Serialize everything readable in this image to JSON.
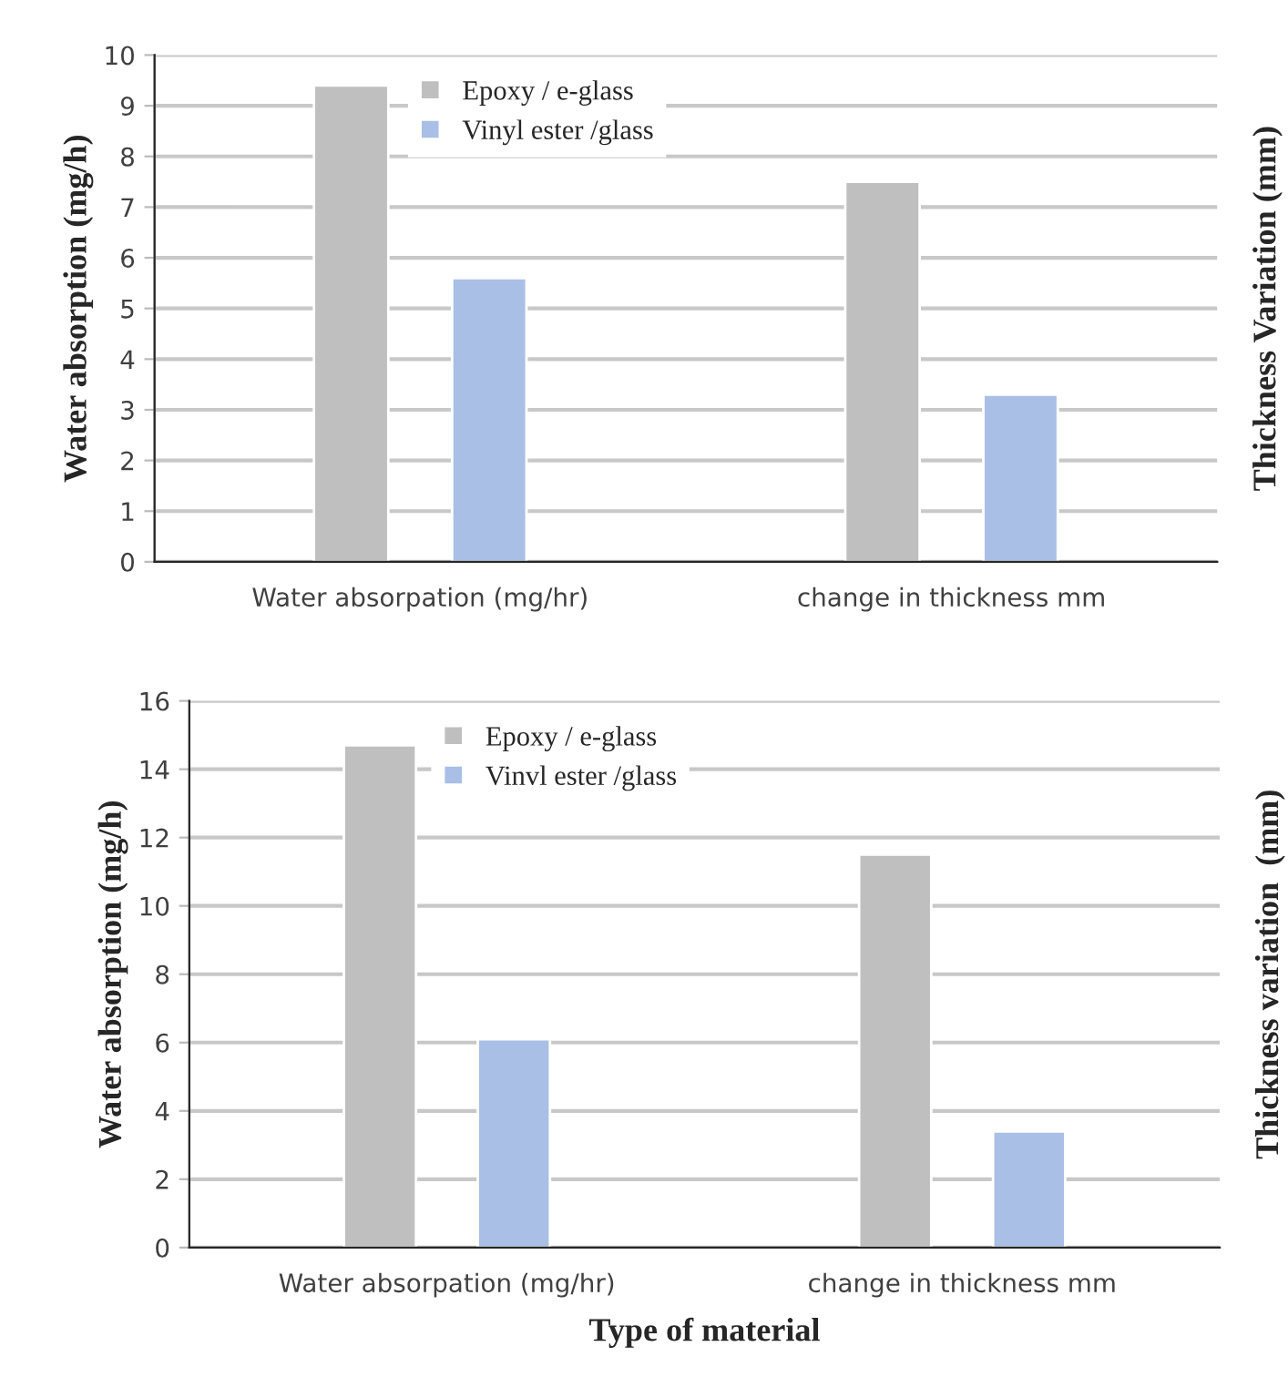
{
  "chart_data": [
    {
      "type": "bar",
      "categories": [
        "Water absorpation (mg/hr)",
        "change in thickness mm"
      ],
      "ylabel": "Water absorption (mg/h)",
      "y2label": "Thickness Variation (mm)",
      "ylim": [
        0,
        10
      ],
      "yticks": [
        0,
        1,
        2,
        3,
        4,
        5,
        6,
        7,
        8,
        9,
        10
      ],
      "grid": "y",
      "legend": "top",
      "series": [
        {
          "name": "Epoxy / e-glass",
          "color": "#bfbfbf",
          "values": [
            9.4,
            7.5
          ]
        },
        {
          "name": "Vinyl ester /glass",
          "color": "#a9bfe6",
          "values": [
            5.6,
            3.3
          ]
        }
      ]
    },
    {
      "type": "bar",
      "categories": [
        "Water absorpation (mg/hr)",
        "change in thickness mm"
      ],
      "xlabel": "Type of material",
      "ylabel": "Water absorption (mg/h)",
      "y2label": "Thickness variation  (mm)",
      "ylim": [
        0,
        16
      ],
      "yticks": [
        0,
        2,
        4,
        6,
        8,
        10,
        12,
        14,
        16
      ],
      "grid": "y",
      "legend": "top",
      "series": [
        {
          "name": "Epoxy / e-glass",
          "color": "#bfbfbf",
          "values": [
            14.7,
            11.5
          ]
        },
        {
          "name": "Vinvl ester /glass",
          "color": "#a9bfe6",
          "values": [
            6.1,
            3.4
          ]
        }
      ]
    }
  ]
}
